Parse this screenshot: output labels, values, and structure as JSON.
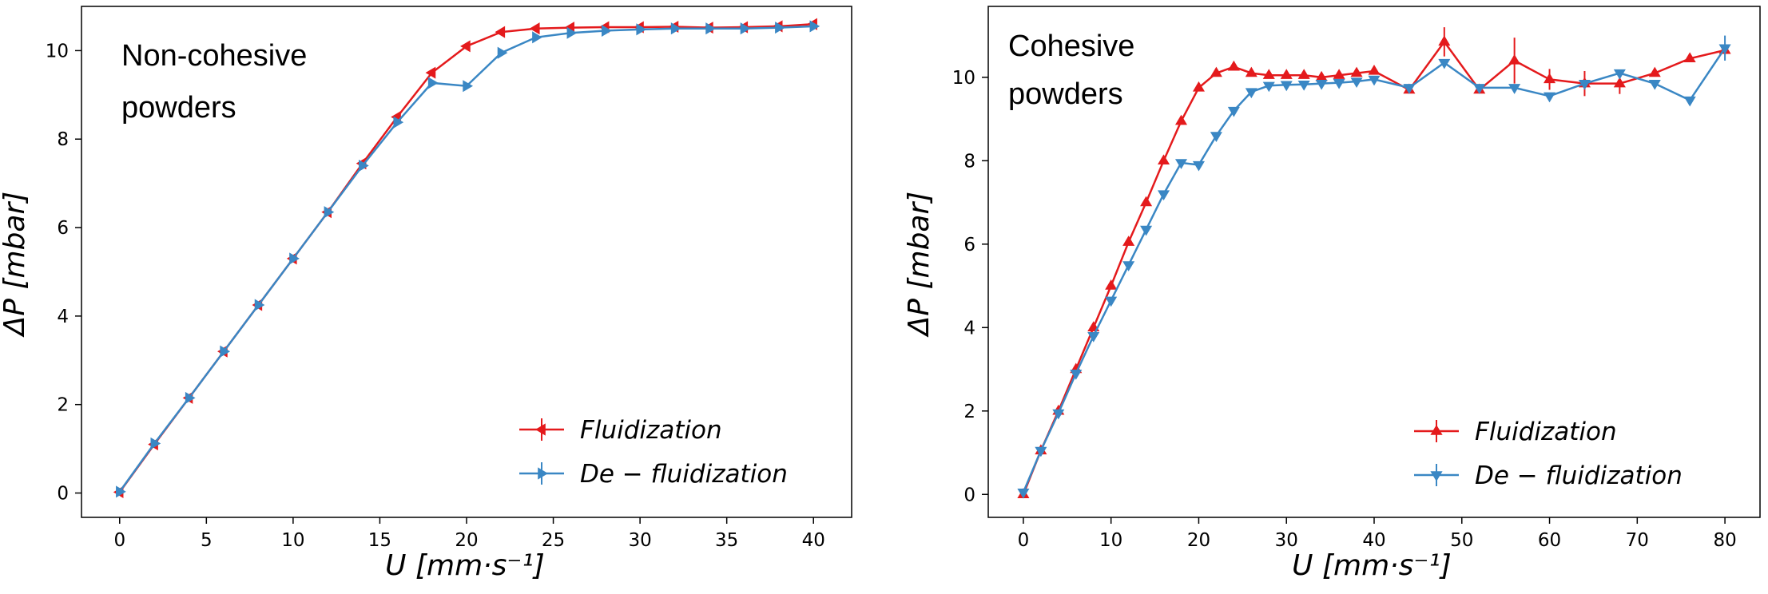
{
  "colors": {
    "fluidization": "#e41a1c",
    "defluidization": "#3a87c4"
  },
  "chart_data": [
    {
      "type": "line",
      "annotation": [
        "Non-cohesive",
        "powders"
      ],
      "xlabel": "U [mm·s⁻¹]",
      "ylabel": "ΔP [mbar]",
      "xlim": [
        -2.2,
        42.2
      ],
      "ylim": [
        -0.55,
        11.0
      ],
      "xticks": [
        0,
        5,
        10,
        15,
        20,
        25,
        30,
        35,
        40
      ],
      "yticks": [
        0,
        2,
        4,
        6,
        8,
        10
      ],
      "legend_position": "lower-right",
      "series": [
        {
          "name": "Fluidization",
          "marker": "triangle-left",
          "color": "#e41a1c",
          "x": [
            0,
            2,
            4,
            6,
            8,
            10,
            12,
            14,
            16,
            18,
            20,
            22,
            24,
            26,
            28,
            30,
            32,
            34,
            36,
            38,
            40
          ],
          "y": [
            0.02,
            1.1,
            2.15,
            3.2,
            4.25,
            5.3,
            6.35,
            7.45,
            8.5,
            9.5,
            10.1,
            10.42,
            10.5,
            10.52,
            10.53,
            10.53,
            10.54,
            10.52,
            10.53,
            10.55,
            10.6
          ]
        },
        {
          "name": "De − fluidization",
          "marker": "triangle-right",
          "color": "#3a87c4",
          "x": [
            0,
            2,
            4,
            6,
            8,
            10,
            12,
            14,
            16,
            18,
            20,
            22,
            24,
            26,
            28,
            30,
            32,
            34,
            36,
            38,
            40
          ],
          "y": [
            0.03,
            1.12,
            2.15,
            3.2,
            4.25,
            5.3,
            6.35,
            7.4,
            8.38,
            9.27,
            9.2,
            9.95,
            10.3,
            10.4,
            10.45,
            10.48,
            10.5,
            10.5,
            10.5,
            10.52,
            10.55
          ]
        }
      ]
    },
    {
      "type": "line",
      "annotation": [
        "Cohesive",
        "powders"
      ],
      "xlabel": "U [mm·s⁻¹]",
      "ylabel": "ΔP [mbar]",
      "xlim": [
        -4.0,
        84.0
      ],
      "ylim": [
        -0.55,
        11.7
      ],
      "xticks": [
        0,
        10,
        20,
        30,
        40,
        50,
        60,
        70,
        80
      ],
      "yticks": [
        0,
        2,
        4,
        6,
        8,
        10
      ],
      "legend_position": "lower-right",
      "series": [
        {
          "name": "Fluidization",
          "marker": "triangle-up",
          "color": "#e41a1c",
          "x": [
            0,
            2,
            4,
            6,
            8,
            10,
            12,
            14,
            16,
            18,
            20,
            22,
            24,
            26,
            28,
            30,
            32,
            34,
            36,
            38,
            40,
            44,
            48,
            52,
            56,
            60,
            64,
            68,
            72,
            76,
            80
          ],
          "y": [
            0,
            1.05,
            2.0,
            3.0,
            4.0,
            5.0,
            6.05,
            7.0,
            8.0,
            8.95,
            9.75,
            10.1,
            10.25,
            10.1,
            10.05,
            10.05,
            10.05,
            10.0,
            10.05,
            10.1,
            10.15,
            9.7,
            10.85,
            9.7,
            10.4,
            9.95,
            9.85,
            9.85,
            10.1,
            10.45,
            10.65
          ],
          "err": [
            0,
            0,
            0,
            0,
            0,
            0,
            0,
            0,
            0,
            0,
            0,
            0,
            0,
            0,
            0,
            0,
            0,
            0,
            0,
            0,
            0,
            0,
            0.35,
            0,
            0.55,
            0.25,
            0.3,
            0.25,
            0,
            0,
            0
          ]
        },
        {
          "name": "De − fluidization",
          "marker": "triangle-down",
          "color": "#3a87c4",
          "x": [
            0,
            2,
            4,
            6,
            8,
            10,
            12,
            14,
            16,
            18,
            20,
            22,
            24,
            26,
            28,
            30,
            32,
            34,
            36,
            38,
            40,
            44,
            48,
            52,
            56,
            60,
            64,
            68,
            72,
            76,
            80
          ],
          "y": [
            0.05,
            1.05,
            1.95,
            2.9,
            3.8,
            4.65,
            5.5,
            6.35,
            7.2,
            7.95,
            7.9,
            8.6,
            9.2,
            9.65,
            9.8,
            9.82,
            9.83,
            9.85,
            9.87,
            9.9,
            9.95,
            9.75,
            10.35,
            9.75,
            9.75,
            9.55,
            9.85,
            10.1,
            9.85,
            9.45,
            10.7
          ],
          "err": [
            0,
            0,
            0,
            0,
            0,
            0,
            0,
            0,
            0,
            0,
            0,
            0,
            0,
            0,
            0,
            0,
            0,
            0,
            0,
            0,
            0,
            0,
            0,
            0,
            0,
            0,
            0,
            0,
            0,
            0,
            0.3
          ]
        }
      ]
    }
  ]
}
